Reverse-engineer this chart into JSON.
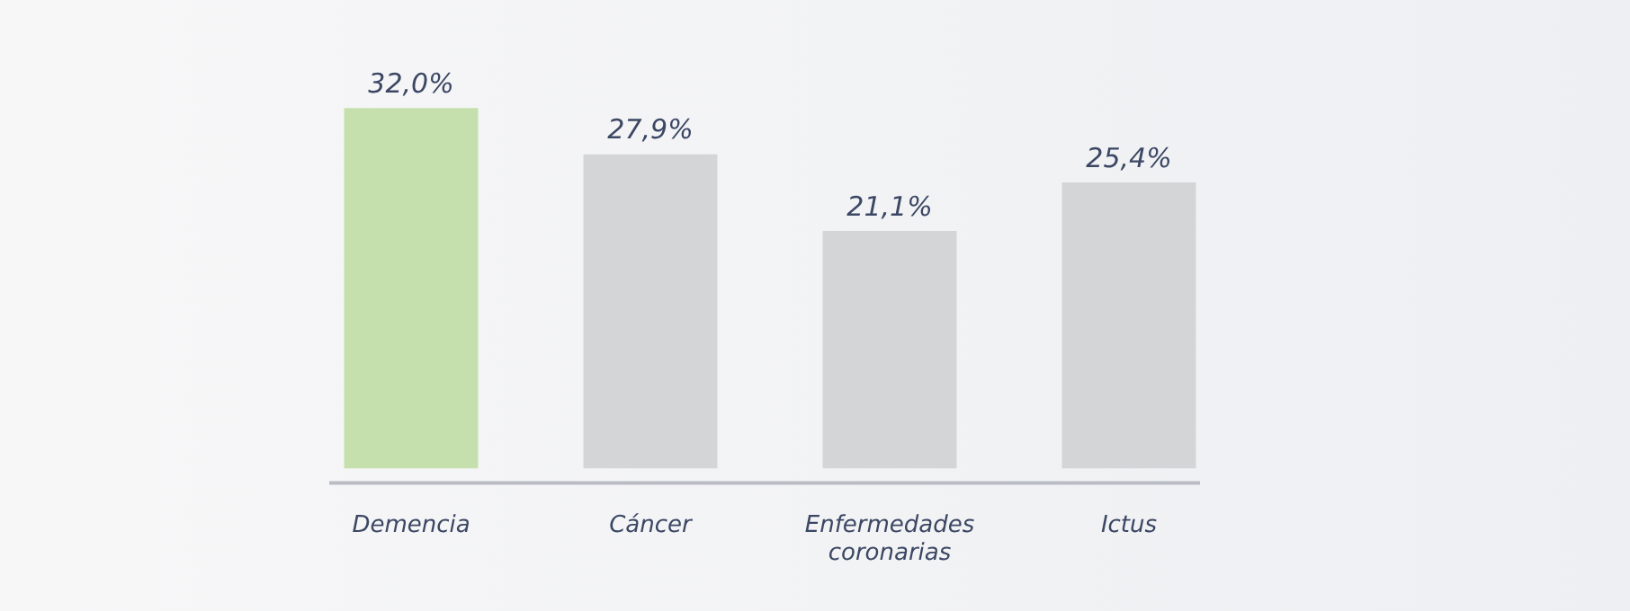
{
  "chart_data": {
    "type": "bar",
    "categories": [
      "Demencia",
      "Cáncer",
      "Enfermedades coronarias",
      "Ictus"
    ],
    "values": [
      32.0,
      27.9,
      21.1,
      25.4
    ],
    "colors": [
      "#c5e0ad",
      "#d4d5d7",
      "#d4d5d7",
      "#d4d5d7"
    ],
    "value_labels": [
      "32,0%",
      "27,9%",
      "21,1%",
      "25,4%"
    ],
    "grid": false,
    "legend": false
  }
}
